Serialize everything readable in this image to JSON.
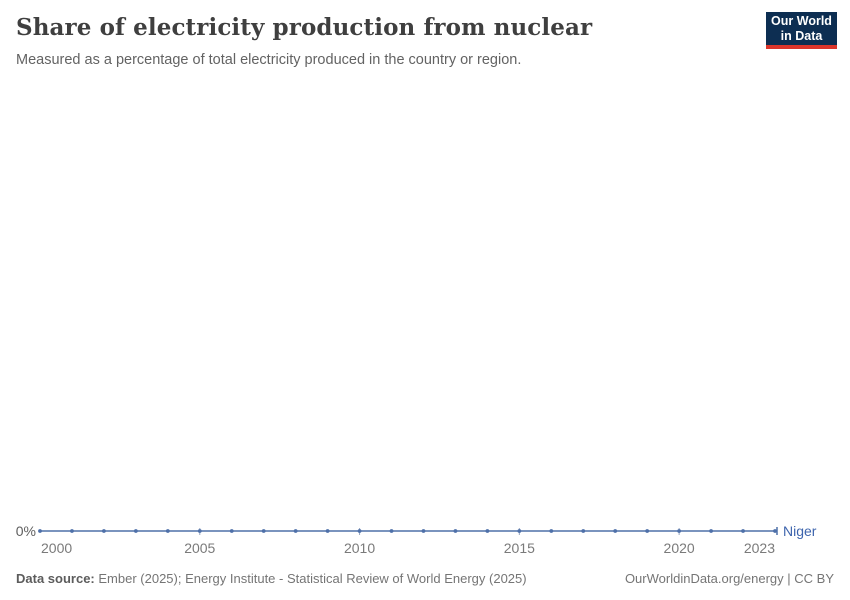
{
  "header": {
    "title": "Share of electricity production from nuclear",
    "subtitle": "Measured as a percentage of total electricity produced in the country or region."
  },
  "logo": {
    "line1": "Our World",
    "line2": "in Data",
    "background_color": "#0d2e52",
    "accent_color": "#dc352b"
  },
  "chart_data": {
    "type": "line",
    "title": "Share of electricity production from nuclear",
    "subtitle": "Measured as a percentage of total electricity produced in the country or region.",
    "xlabel": "",
    "ylabel": "",
    "xlim": [
      2000,
      2023
    ],
    "x_ticks": [
      2000,
      2005,
      2010,
      2015,
      2020,
      2023
    ],
    "y_ticks": [
      {
        "value": 0,
        "label": "0%"
      }
    ],
    "gridlines": false,
    "legend_position": "inline-right-of-line",
    "series": [
      {
        "name": "Niger",
        "color": "#4e70a9",
        "label_color": "#3d64ad",
        "x": [
          2000,
          2001,
          2002,
          2003,
          2004,
          2005,
          2006,
          2007,
          2008,
          2009,
          2010,
          2011,
          2012,
          2013,
          2014,
          2015,
          2016,
          2017,
          2018,
          2019,
          2020,
          2021,
          2022,
          2023
        ],
        "values": [
          0,
          0,
          0,
          0,
          0,
          0,
          0,
          0,
          0,
          0,
          0,
          0,
          0,
          0,
          0,
          0,
          0,
          0,
          0,
          0,
          0,
          0,
          0,
          0
        ]
      }
    ],
    "axis_text_color": "#7a7a7a",
    "y_label_color": "#5e5e5e",
    "tick_color": "#93a3c0"
  },
  "footer": {
    "source_label": "Data source:",
    "source_text": "Ember (2025); Energy Institute - Statistical Review of World Energy (2025)",
    "rights": "OurWorldinData.org/energy | CC BY"
  }
}
